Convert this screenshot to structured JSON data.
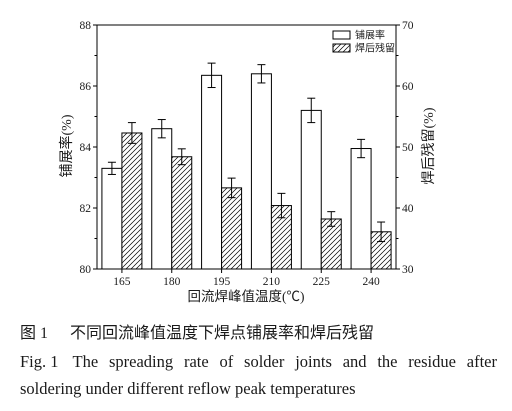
{
  "chart_data": {
    "type": "bar",
    "categories": [
      "165",
      "180",
      "195",
      "210",
      "225",
      "240"
    ],
    "xlabel": "回流焊峰值温度(℃)",
    "ylabel": "铺展率(%)",
    "ylabel_right": "焊后残留(%)",
    "ylim": [
      80,
      88
    ],
    "ylim_right": [
      30,
      70
    ],
    "yticks": [
      80,
      82,
      84,
      86,
      88
    ],
    "yticks_right": [
      30,
      40,
      50,
      60,
      70
    ],
    "legend": "top-right",
    "grid": false,
    "series": [
      {
        "name": "铺展率",
        "values": [
          83.3,
          84.6,
          86.35,
          86.4,
          85.2,
          83.95
        ],
        "errors": [
          0.2,
          0.3,
          0.4,
          0.3,
          0.4,
          0.3
        ]
      },
      {
        "name": "焊后残留",
        "values": [
          52.3,
          48.4,
          43.3,
          40.4,
          38.2,
          36.1
        ],
        "errors": [
          1.7,
          1.3,
          1.6,
          2.0,
          1.2,
          1.6
        ]
      }
    ]
  },
  "caption": {
    "cn_label": "图 1",
    "cn_text": "不同回流峰值温度下焊点铺展率和焊后残留",
    "en_label": "Fig. 1",
    "en_line1": "The spreading rate of solder joints and the residue after",
    "en_line2": "soldering under different reflow peak temperatures"
  },
  "colors": {
    "bar_fill": "#ffffff",
    "bar_stroke": "#000000",
    "axis": "#000000",
    "axis_title": "#7a2e2e"
  }
}
